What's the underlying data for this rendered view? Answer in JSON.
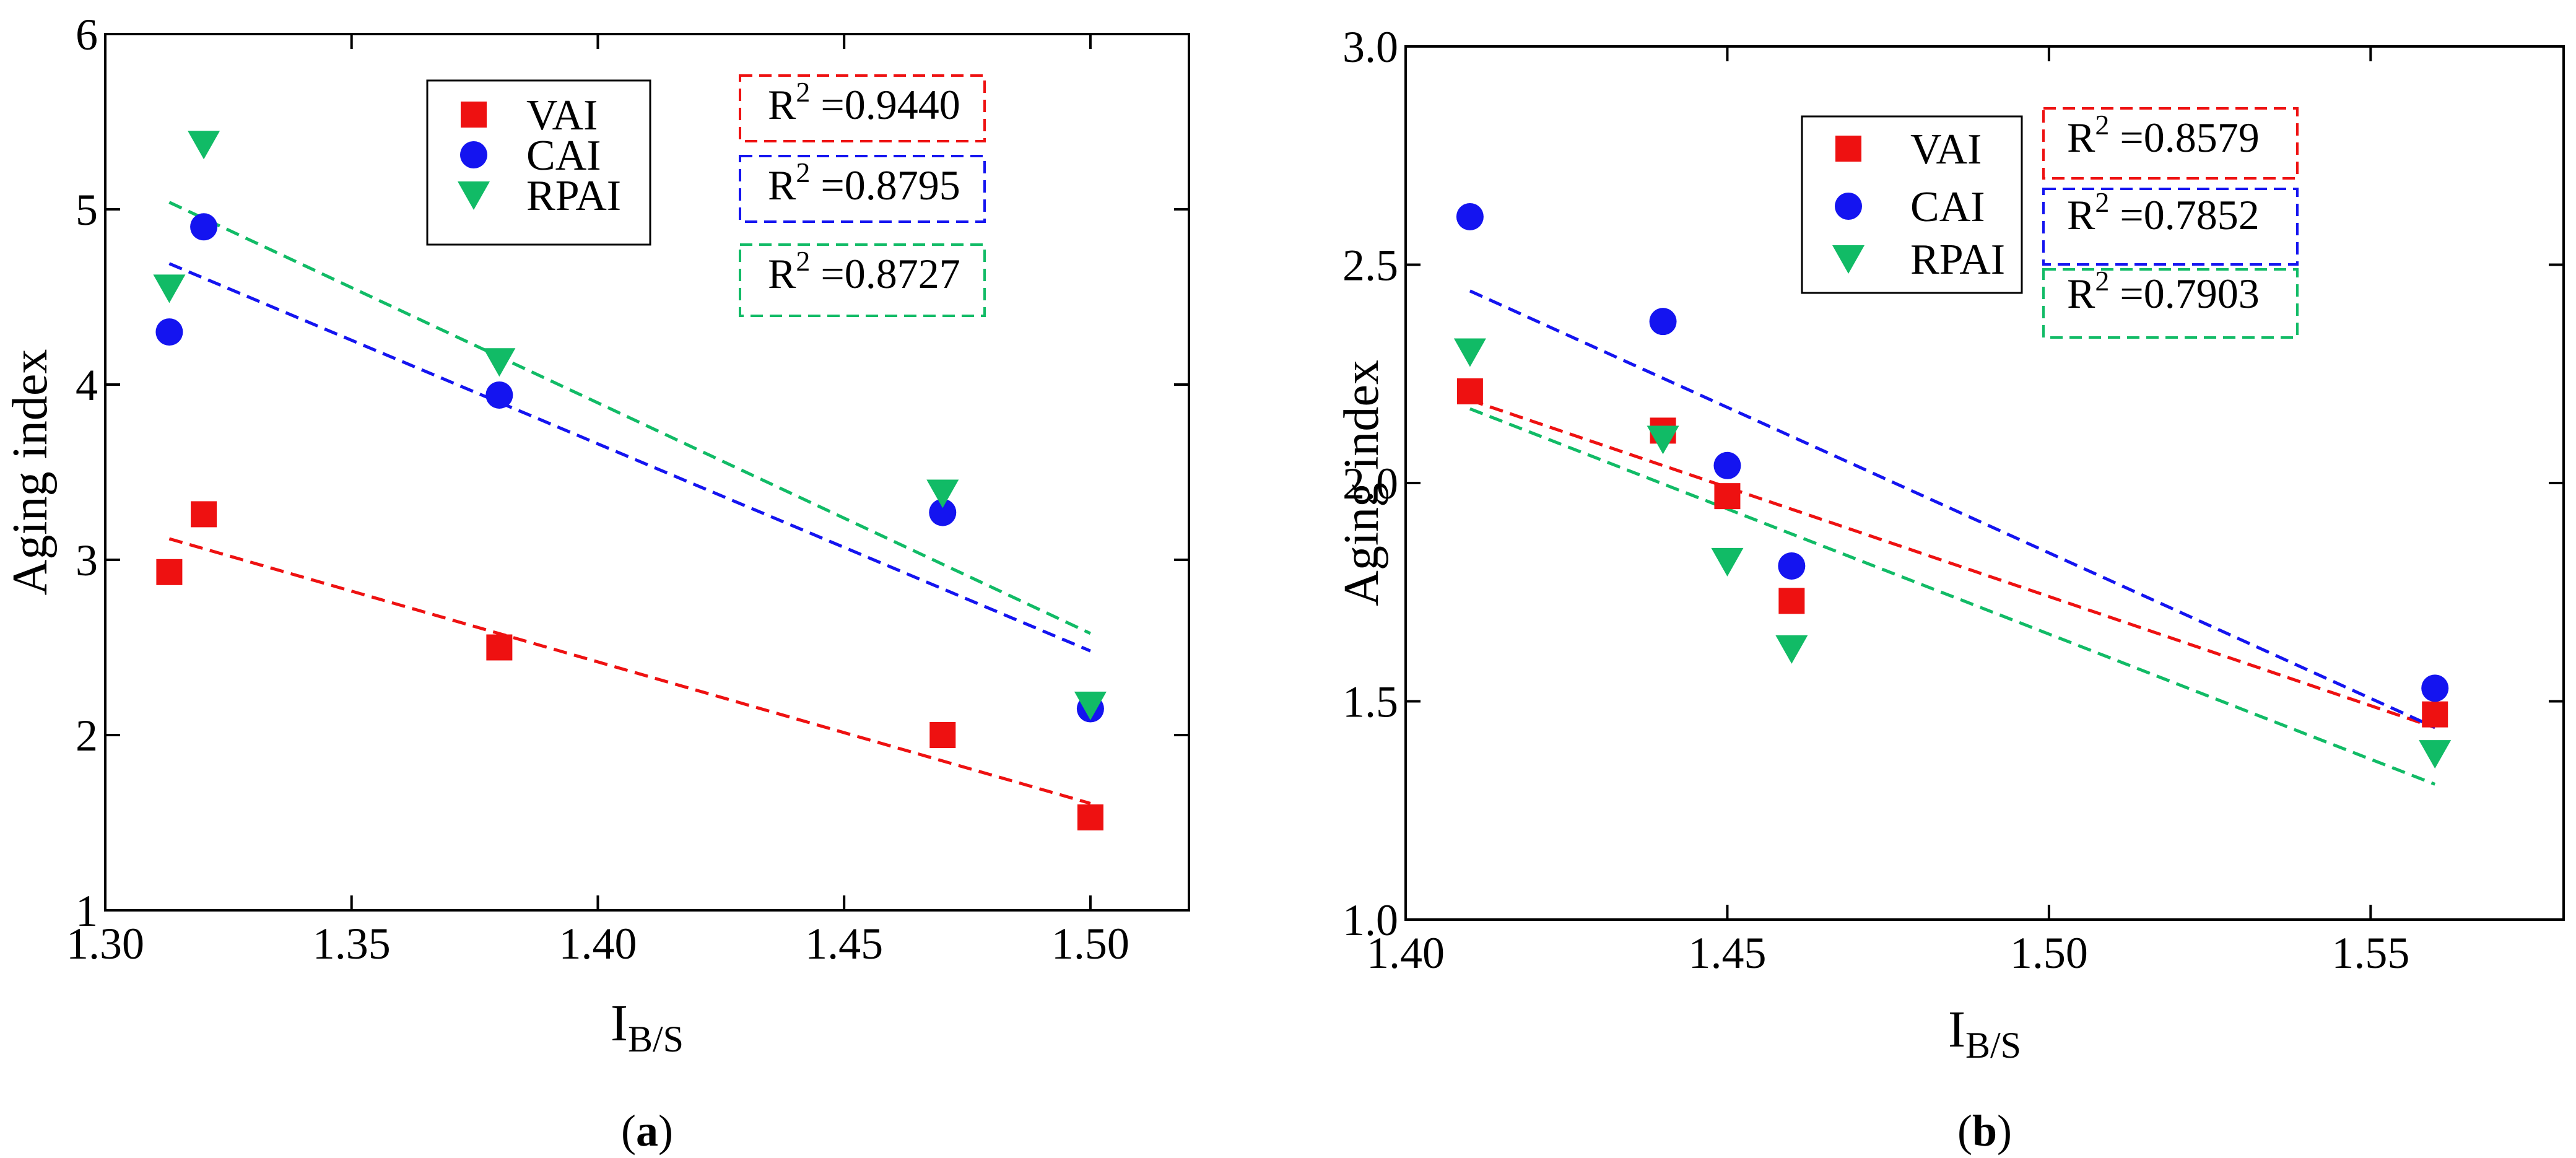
{
  "chart_data": [
    {
      "panel": "(a)",
      "caption_letter": "a",
      "type": "scatter",
      "ylabel": "Aging index",
      "xlabel": "I",
      "xlabel_sub": "B/S",
      "xlim": [
        1.3,
        1.52
      ],
      "ylim": [
        1,
        6
      ],
      "xticks": [
        1.3,
        1.35,
        1.4,
        1.45,
        1.5
      ],
      "xtick_labels": [
        "1.30",
        "1.35",
        "1.40",
        "1.45",
        "1.50"
      ],
      "yticks": [
        1,
        2,
        3,
        4,
        5,
        6
      ],
      "ytick_labels": [
        "1",
        "2",
        "3",
        "4",
        "5",
        "6"
      ],
      "legend_position": "top-center",
      "series": [
        {
          "name": "VAI",
          "marker": "square",
          "color": "#ee1111",
          "x": [
            1.313,
            1.32,
            1.38,
            1.47,
            1.5
          ],
          "y": [
            2.93,
            3.26,
            2.5,
            2.0,
            1.53
          ],
          "fit": {
            "x": [
              1.313,
              1.5
            ],
            "y": [
              3.12,
              1.61
            ]
          },
          "r2_label": "R",
          "r2_sup": "2",
          "r2_value": "=0.9440"
        },
        {
          "name": "CAI",
          "marker": "circle",
          "color": "#1414f0",
          "x": [
            1.313,
            1.32,
            1.38,
            1.47,
            1.5
          ],
          "y": [
            4.3,
            4.9,
            3.94,
            3.27,
            2.15
          ],
          "fit": {
            "x": [
              1.313,
              1.5
            ],
            "y": [
              4.69,
              2.48
            ]
          },
          "r2_label": "R",
          "r2_sup": "2",
          "r2_value": "=0.8795"
        },
        {
          "name": "RPAI",
          "marker": "triangle-down",
          "color": "#11bb66",
          "x": [
            1.313,
            1.32,
            1.38,
            1.47,
            1.5
          ],
          "y": [
            4.55,
            5.37,
            4.13,
            3.38,
            2.17
          ],
          "fit": {
            "x": [
              1.313,
              1.5
            ],
            "y": [
              5.04,
              2.58
            ]
          },
          "r2_label": "R",
          "r2_sup": "2",
          "r2_value": "=0.8727"
        }
      ]
    },
    {
      "panel": "(b)",
      "caption_letter": "b",
      "type": "scatter",
      "ylabel": "Aging index",
      "xlabel": "I",
      "xlabel_sub": "B/S",
      "xlim": [
        1.4,
        1.58
      ],
      "ylim": [
        1.0,
        3.0
      ],
      "xticks": [
        1.4,
        1.45,
        1.5,
        1.55
      ],
      "xtick_labels": [
        "1.40",
        "1.45",
        "1.50",
        "1.55"
      ],
      "yticks": [
        1.0,
        1.5,
        2.0,
        2.5,
        3.0
      ],
      "ytick_labels": [
        "1.0",
        "1.5",
        "2.0",
        "2.5",
        "3.0"
      ],
      "legend_position": "top-left",
      "series": [
        {
          "name": "VAI",
          "marker": "square",
          "color": "#ee1111",
          "x": [
            1.41,
            1.44,
            1.45,
            1.46,
            1.56
          ],
          "y": [
            2.21,
            2.12,
            1.97,
            1.73,
            1.47
          ],
          "fit": {
            "x": [
              1.41,
              1.56
            ],
            "y": [
              2.19,
              1.44
            ]
          },
          "r2_label": "R",
          "r2_sup": "2",
          "r2_value": "=0.8579"
        },
        {
          "name": "CAI",
          "marker": "circle",
          "color": "#1414f0",
          "x": [
            1.41,
            1.44,
            1.45,
            1.46,
            1.56
          ],
          "y": [
            2.61,
            2.37,
            2.04,
            1.81,
            1.53
          ],
          "fit": {
            "x": [
              1.41,
              1.56
            ],
            "y": [
              2.44,
              1.44
            ]
          },
          "r2_label": "R",
          "r2_sup": "2",
          "r2_value": "=0.7852"
        },
        {
          "name": "RPAI",
          "marker": "triangle-down",
          "color": "#11bb66",
          "x": [
            1.41,
            1.44,
            1.45,
            1.46,
            1.56
          ],
          "y": [
            2.3,
            2.1,
            1.82,
            1.62,
            1.38
          ],
          "fit": {
            "x": [
              1.41,
              1.56
            ],
            "y": [
              2.17,
              1.31
            ]
          },
          "r2_label": "R",
          "r2_sup": "2",
          "r2_value": "=0.7903"
        }
      ]
    }
  ]
}
